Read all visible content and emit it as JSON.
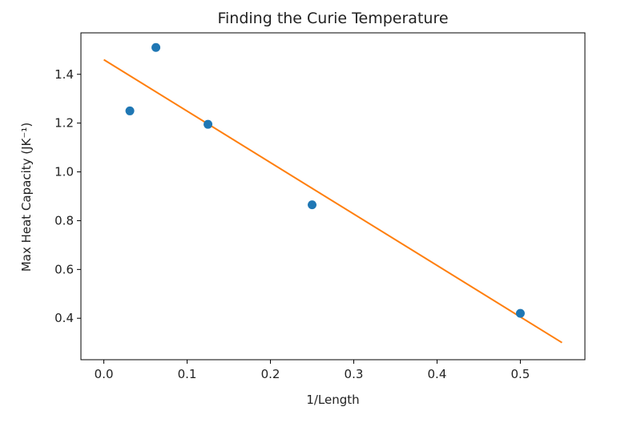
{
  "chart_data": {
    "type": "scatter",
    "title": "Finding the Curie Temperature",
    "xlabel": "1/Length",
    "ylabel": "Max Heat Capacity (JK⁻¹)",
    "xlim": [
      -0.0275,
      0.5775
    ],
    "ylim": [
      0.23,
      1.57
    ],
    "x_ticks": [
      0.0,
      0.1,
      0.2,
      0.3,
      0.4,
      0.5
    ],
    "y_ticks": [
      0.4,
      0.6,
      0.8,
      1.0,
      1.2,
      1.4
    ],
    "grid": false,
    "series": [
      {
        "type": "scatter",
        "color": "#1f77b4",
        "points": [
          {
            "x": 0.03125,
            "y": 1.25
          },
          {
            "x": 0.0625,
            "y": 1.51
          },
          {
            "x": 0.125,
            "y": 1.195
          },
          {
            "x": 0.25,
            "y": 0.865
          },
          {
            "x": 0.5,
            "y": 0.42
          }
        ]
      },
      {
        "type": "line",
        "color": "#ff7f0e",
        "points": [
          {
            "x": 0.0,
            "y": 1.46
          },
          {
            "x": 0.55,
            "y": 0.3
          }
        ]
      }
    ]
  }
}
